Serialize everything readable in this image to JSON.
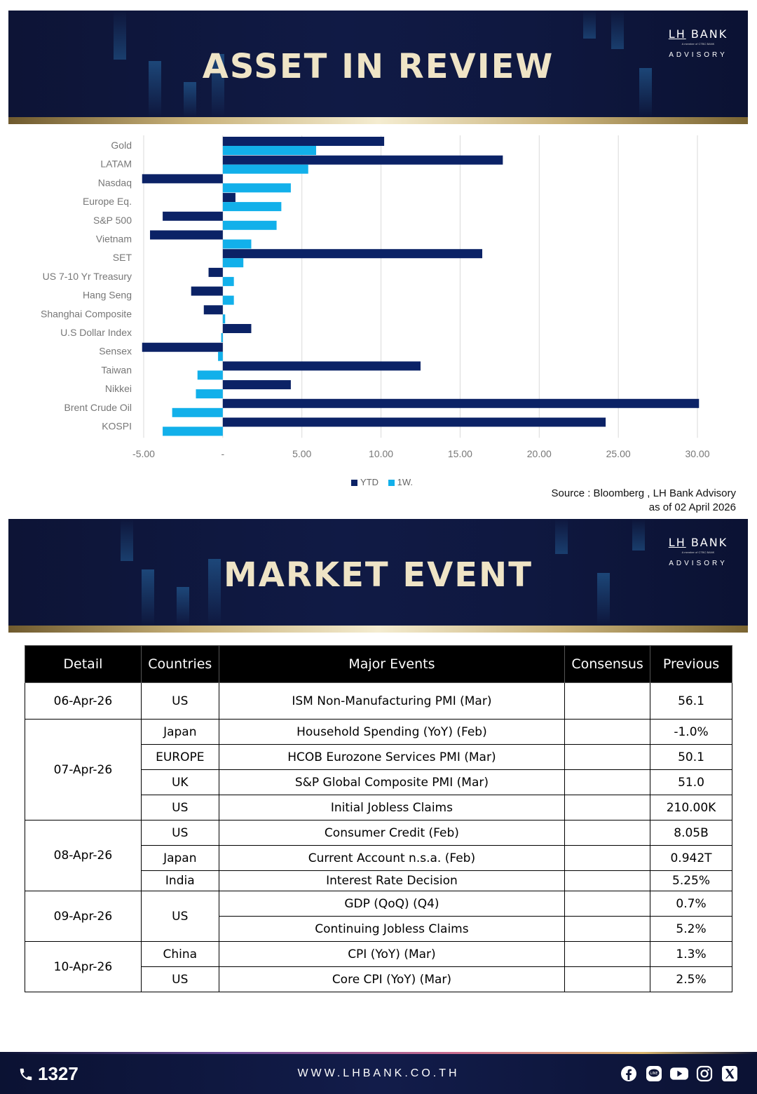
{
  "banner1": {
    "title": "ASSET IN REVIEW",
    "brand_lh": "LH",
    "brand_bank": "BANK",
    "brand_member": "A member of CTBC BANK",
    "brand_advisory": "ADVISORY"
  },
  "banner2": {
    "title": "MARKET EVENT",
    "brand_lh": "LH",
    "brand_bank": "BANK",
    "brand_member": "A member of CTBC BANK",
    "brand_advisory": "ADVISORY"
  },
  "chart_data": {
    "type": "bar",
    "orientation": "horizontal",
    "categories": [
      "Gold",
      "LATAM",
      "Nasdaq",
      "Europe Eq.",
      "S&P 500",
      "Vietnam",
      "SET",
      "US 7-10 Yr Treasury",
      "Hang Seng",
      "Shanghai Composite",
      "U.S Dollar Index",
      "Sensex",
      "Taiwan",
      "Nikkei",
      "Brent Crude Oil",
      "KOSPI"
    ],
    "series": [
      {
        "name": "YTD",
        "color": "#0b2266",
        "values": [
          10.2,
          17.7,
          -5.1,
          0.8,
          -3.8,
          -4.6,
          16.4,
          -0.9,
          -2.0,
          -1.2,
          1.8,
          -5.1,
          12.5,
          4.3,
          30.1,
          24.2
        ]
      },
      {
        "name": "1W.",
        "color": "#12b0ea",
        "values": [
          5.9,
          5.4,
          4.3,
          3.7,
          3.4,
          1.8,
          1.3,
          0.7,
          0.7,
          0.15,
          -0.1,
          -0.3,
          -1.6,
          -1.7,
          -3.2,
          -3.8
        ]
      }
    ],
    "xlim": [
      -5,
      30
    ],
    "xticks": [
      "-5.00",
      "-",
      "5.00",
      "10.00",
      "15.00",
      "20.00",
      "25.00",
      "30.00"
    ],
    "xtick_values": [
      -5,
      0,
      5,
      10,
      15,
      20,
      25,
      30
    ],
    "grid": true,
    "legend": "bottom"
  },
  "source_line1": "Source : Bloomberg , LH Bank Advisory",
  "source_line2": "as of 02 April 2026",
  "table": {
    "headers": [
      "Detail",
      "Countries",
      "Major Events",
      "Consensus",
      "Previous"
    ],
    "rows": [
      {
        "date": "06-Apr-26",
        "country": "US",
        "event": "ISM Non-Manufacturing PMI (Mar)",
        "consensus": "",
        "previous": "56.1"
      },
      {
        "date": "07-Apr-26",
        "country": "Japan",
        "event": "Household Spending (YoY) (Feb)",
        "consensus": "",
        "previous": "-1.0%"
      },
      {
        "date": "",
        "country": "EUROPE",
        "event": "HCOB Eurozone Services PMI (Mar)",
        "consensus": "",
        "previous": "50.1"
      },
      {
        "date": "",
        "country": "UK",
        "event": "S&P Global Composite PMI (Mar)",
        "consensus": "",
        "previous": "51.0"
      },
      {
        "date": "",
        "country": "US",
        "event": "Initial Jobless Claims",
        "consensus": "",
        "previous": "210.00K"
      },
      {
        "date": "08-Apr-26",
        "country": "US",
        "event": "Consumer Credit (Feb)",
        "consensus": "",
        "previous": "8.05B"
      },
      {
        "date": "",
        "country": "Japan",
        "event": "Current Account n.s.a. (Feb)",
        "consensus": "",
        "previous": "0.942T"
      },
      {
        "date": "",
        "country": "India",
        "event": "Interest Rate Decision",
        "consensus": "",
        "previous": "5.25%"
      },
      {
        "date": "09-Apr-26",
        "country": "US",
        "event": "GDP (QoQ) (Q4)",
        "consensus": "",
        "previous": "0.7%"
      },
      {
        "date": "",
        "country": "",
        "event": "Continuing Jobless Claims",
        "consensus": "",
        "previous": "5.2%"
      },
      {
        "date": "10-Apr-26",
        "country": "China",
        "event": "CPI (YoY) (Mar)",
        "consensus": "",
        "previous": "1.3%"
      },
      {
        "date": "",
        "country": "US",
        "event": "Core CPI (YoY) (Mar)",
        "consensus": "",
        "previous": "2.5%"
      }
    ]
  },
  "footer": {
    "phone": "1327",
    "website": "WWW.LHBANK.CO.TH",
    "icons": [
      "facebook-icon",
      "line-icon",
      "youtube-icon",
      "instagram-icon",
      "x-icon"
    ]
  }
}
